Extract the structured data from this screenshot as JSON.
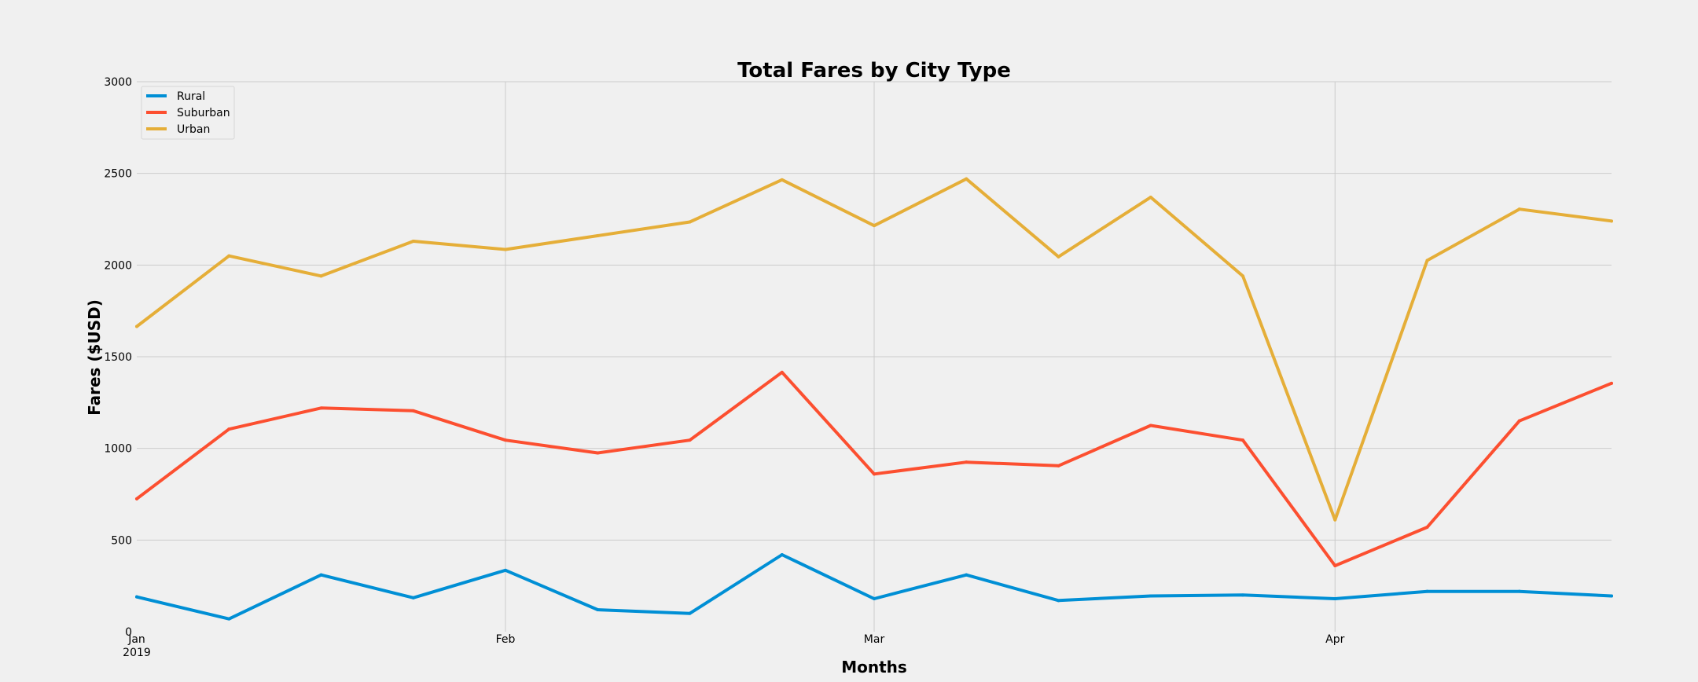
{
  "chart_data": {
    "type": "line",
    "title": "Total Fares by City Type",
    "xlabel": "Months",
    "ylabel": "Fares ($USD)",
    "x": [
      "2019-01-06",
      "2019-01-13",
      "2019-01-20",
      "2019-01-27",
      "2019-02-03",
      "2019-02-10",
      "2019-02-17",
      "2019-02-24",
      "2019-03-03",
      "2019-03-10",
      "2019-03-17",
      "2019-03-24",
      "2019-03-31",
      "2019-04-07",
      "2019-04-14",
      "2019-04-21",
      "2019-04-28"
    ],
    "x_ticks": [
      {
        "date": "2019-01-06",
        "label": "Jan",
        "sublabel": "2019"
      },
      {
        "date": "2019-02-03",
        "label": "Feb",
        "sublabel": ""
      },
      {
        "date": "2019-03-03",
        "label": "Mar",
        "sublabel": ""
      },
      {
        "date": "2019-04-07",
        "label": "Apr",
        "sublabel": ""
      }
    ],
    "ylim": [
      0,
      3000
    ],
    "y_ticks": [
      0,
      500,
      1000,
      1500,
      2000,
      2500,
      3000
    ],
    "grid": true,
    "legend_position": "top-left",
    "series": [
      {
        "name": "Rural",
        "color": "#008fd5",
        "values": [
          190,
          70,
          310,
          185,
          335,
          120,
          100,
          420,
          180,
          310,
          170,
          195,
          200,
          180,
          220,
          220,
          195
        ]
      },
      {
        "name": "Suburban",
        "color": "#fc4f30",
        "values": [
          725,
          1105,
          1220,
          1205,
          1045,
          975,
          1045,
          1415,
          860,
          925,
          905,
          1125,
          1045,
          360,
          570,
          1150,
          1355
        ]
      },
      {
        "name": "Urban",
        "color": "#e5ae38",
        "values": [
          1665,
          2050,
          1940,
          2130,
          2085,
          2160,
          2235,
          2465,
          2215,
          2470,
          2045,
          2370,
          1940,
          610,
          2025,
          2305,
          2240
        ]
      }
    ]
  }
}
